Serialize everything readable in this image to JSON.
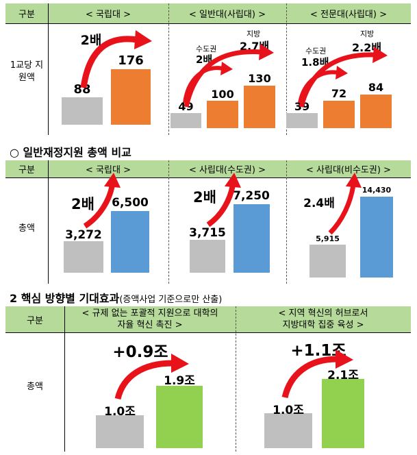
{
  "table1": {
    "header": {
      "col0": "구분",
      "col1": "< 국립대 >",
      "col2": "< 일반대(사립대) >",
      "col3": "< 전문대(사립대) >"
    },
    "row_label": "1교당 지원액",
    "panels": [
      {
        "left_value": "88",
        "right_value": "176",
        "multiplier": "2배",
        "left_level": 88,
        "right_level": 176
      },
      {
        "left_value": "49",
        "mid_value": "100",
        "right_value": "130",
        "sub1_label": "수도권",
        "sub1_mult": "2배",
        "sub2_label": "지방",
        "sub2_mult": "2.7배",
        "left_level": 49,
        "mid_level": 100,
        "right_level": 130
      },
      {
        "left_value": "39",
        "mid_value": "72",
        "right_value": "84",
        "sub1_label": "수도권",
        "sub1_mult": "1.8배",
        "sub2_label": "지방",
        "sub2_mult": "2.2배",
        "left_level": 39,
        "mid_level": 72,
        "right_level": 84
      }
    ]
  },
  "section2": {
    "bullet": "○",
    "title": "일반재정지원 총액 비교"
  },
  "table2": {
    "header": {
      "col0": "구분",
      "col1": "< 국립대 >",
      "col2": "< 사립대(수도권) >",
      "col3": "< 사립대(비수도권) >"
    },
    "row_label": "총액",
    "panels": [
      {
        "left_value": "3,272",
        "right_value": "6,500",
        "multiplier": "2배",
        "left_level": 3272,
        "right_level": 6500
      },
      {
        "left_value": "3,715",
        "right_value": "7,250",
        "multiplier": "2배",
        "left_level": 3715,
        "right_level": 7250
      },
      {
        "left_value": "5,915",
        "right_value": "14,430",
        "multiplier": "2.4배",
        "left_level": 5915,
        "right_level": 14430
      }
    ]
  },
  "section3": {
    "number": "2",
    "title": "핵심 방향별 기대효과",
    "note": "(증액사업 기준으로만 산출)"
  },
  "table3": {
    "header": {
      "col0": "구분",
      "col1_line1": "< 규제 없는 포괄적 지원으로 대학의",
      "col1_line2": "자율 혁신 촉진 >",
      "col2_line1": "< 지역 혁신의 허브로서",
      "col2_line2": "지방대학 집중 육성 >"
    },
    "row_label": "총액",
    "panels": [
      {
        "left_value": "1.0조",
        "right_value": "1.9조",
        "multiplier": "+0.9조",
        "left_level": 1.0,
        "right_level": 1.9
      },
      {
        "left_value": "1.0조",
        "right_value": "2.1조",
        "multiplier": "+1.1조",
        "left_level": 1.0,
        "right_level": 2.1
      }
    ]
  },
  "colors": {
    "header_bg": "#b6da9a",
    "gray_bar": "#bfbfbf",
    "orange_bar": "#ed7d31",
    "blue_bar": "#5b9bd5",
    "green_bar": "#92d050",
    "arrow": "#e8121b"
  }
}
